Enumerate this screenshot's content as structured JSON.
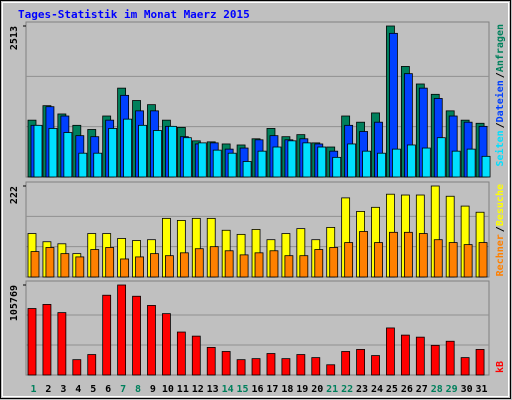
{
  "title": "Tages-Statistik im Monat Maerz 2015",
  "legend_separator": "/",
  "highlight_categories": [
    "1",
    "7",
    "8",
    "14",
    "15",
    "21",
    "22",
    "28",
    "29"
  ],
  "chart_data": [
    {
      "type": "bar",
      "ylim": [
        0,
        2513
      ],
      "yticks": [
        2513
      ],
      "series": [
        {
          "name": "Anfragen",
          "color": "#00805c",
          "values": [
            946,
            1187,
            1049,
            860,
            791,
            1015,
            1479,
            1273,
            1204,
            946,
            826,
            602,
            585,
            550,
            533,
            636,
            808,
            671,
            705,
            568,
            499,
            1015,
            912,
            1066,
            2513,
            1840,
            1548,
            1376,
            1101,
            946,
            894
          ]
        },
        {
          "name": "Dateien",
          "color": "#0040ff",
          "values": [
            860,
            1170,
            1015,
            688,
            671,
            946,
            1359,
            1101,
            1101,
            843,
            671,
            550,
            568,
            464,
            482,
            619,
            688,
            619,
            636,
            550,
            430,
            860,
            757,
            912,
            2391,
            1720,
            1479,
            1307,
            1015,
            912,
            843
          ]
        },
        {
          "name": "Seiten",
          "color": "#00e0ff",
          "values": [
            860,
            808,
            740,
            396,
            396,
            808,
            963,
            860,
            774,
            843,
            654,
            568,
            447,
            396,
            258,
            430,
            499,
            602,
            568,
            499,
            327,
            550,
            430,
            396,
            464,
            533,
            482,
            654,
            430,
            464,
            344
          ]
        }
      ]
    },
    {
      "type": "bar",
      "ylim": [
        0,
        222
      ],
      "yticks": [
        222
      ],
      "series": [
        {
          "name": "Besuche",
          "color": "#ffff00",
          "values": [
            106,
            86,
            81,
            57,
            106,
            106,
            94,
            89,
            91,
            143,
            138,
            143,
            143,
            114,
            104,
            116,
            91,
            106,
            118,
            91,
            121,
            193,
            160,
            170,
            202,
            200,
            200,
            222,
            197,
            173,
            158
          ]
        },
        {
          "name": "Rechner",
          "color": "#ff8000",
          "values": [
            62,
            72,
            57,
            49,
            67,
            72,
            44,
            49,
            57,
            52,
            59,
            69,
            74,
            64,
            54,
            59,
            64,
            52,
            52,
            67,
            72,
            84,
            111,
            84,
            109,
            109,
            106,
            91,
            84,
            79,
            84
          ]
        }
      ]
    },
    {
      "type": "bar",
      "ylim": [
        0,
        105769
      ],
      "yticks": [
        105769
      ],
      "categories": [
        "1",
        "2",
        "3",
        "4",
        "5",
        "6",
        "7",
        "8",
        "9",
        "10",
        "11",
        "12",
        "13",
        "14",
        "15",
        "16",
        "17",
        "18",
        "19",
        "20",
        "21",
        "22",
        "23",
        "24",
        "25",
        "26",
        "27",
        "28",
        "29",
        "30",
        "31"
      ],
      "series": [
        {
          "name": "kB",
          "color": "#ff0000",
          "values": [
            78130,
            82938,
            73322,
            18029,
            24040,
            93749,
            105769,
            92547,
            81736,
            72120,
            50484,
            45676,
            32454,
            27646,
            18029,
            19231,
            25242,
            19231,
            24040,
            20433,
            12020,
            27646,
            30050,
            22838,
            55292,
            46879,
            44475,
            34858,
            39666,
            20433,
            30050
          ]
        }
      ]
    }
  ]
}
